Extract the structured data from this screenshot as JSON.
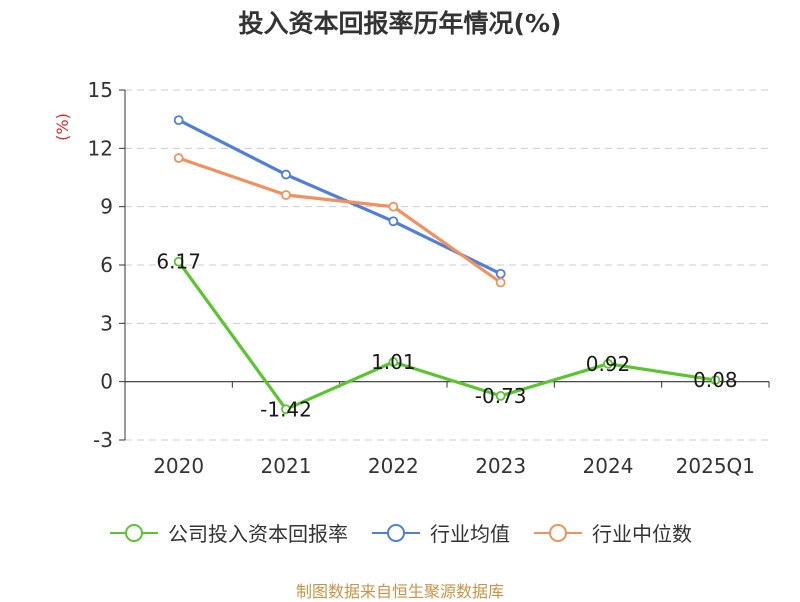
{
  "chart_data": {
    "type": "line",
    "title": "投入资本回报率历年情况(%)",
    "ylabel": "(%)",
    "categories": [
      "2020",
      "2021",
      "2022",
      "2023",
      "2024",
      "2025Q1"
    ],
    "ylim": [
      -3,
      15
    ],
    "yticks": [
      -3,
      0,
      3,
      6,
      9,
      12,
      15
    ],
    "grid": true,
    "legend_position": "bottom",
    "series": [
      {
        "name": "公司投入资本回报率",
        "color": "#5ac530",
        "values": [
          6.17,
          -1.42,
          1.01,
          -0.73,
          0.92,
          0.08
        ],
        "labels": [
          "6.17",
          "-1.42",
          "1.01",
          "-0.73",
          "0.92",
          "0.08"
        ],
        "show_labels": true
      },
      {
        "name": "行业均值",
        "color": "#4f7fd8",
        "values": [
          13.45,
          10.65,
          8.25,
          5.55,
          null,
          null
        ],
        "show_labels": false
      },
      {
        "name": "行业中位数",
        "color": "#f2905e",
        "values": [
          11.5,
          9.6,
          9.0,
          5.1,
          null,
          null
        ],
        "show_labels": false
      }
    ]
  },
  "source": "制图数据来自恒生聚源数据库"
}
